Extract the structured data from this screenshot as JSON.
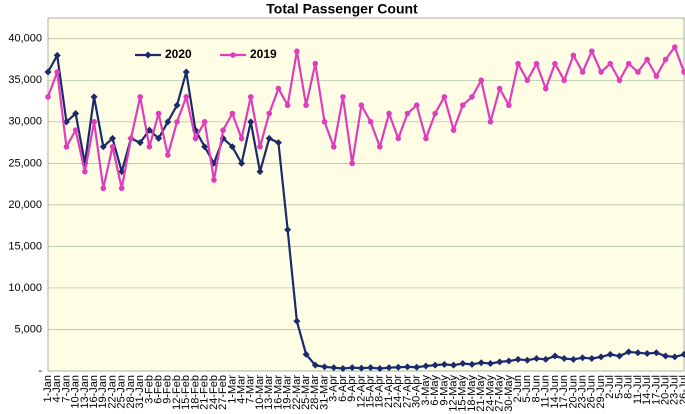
{
  "chart_data": {
    "type": "line",
    "title": "Total Passenger Count",
    "categories": [
      "1-Jan",
      "4-Jan",
      "7-Jan",
      "10-Jan",
      "13-Jan",
      "16-Jan",
      "19-Jan",
      "22-Jan",
      "25-Jan",
      "28-Jan",
      "31-Jan",
      "3-Feb",
      "6-Feb",
      "9-Feb",
      "12-Feb",
      "15-Feb",
      "18-Feb",
      "21-Feb",
      "24-Feb",
      "27-Feb",
      "1-Mar",
      "4-Mar",
      "7-Mar",
      "10-Mar",
      "13-Mar",
      "16-Mar",
      "19-Mar",
      "22-Mar",
      "25-Mar",
      "28-Mar",
      "31-Mar",
      "3-Apr",
      "6-Apr",
      "9-Apr",
      "12-Apr",
      "15-Apr",
      "18-Apr",
      "21-Apr",
      "24-Apr",
      "27-Apr",
      "30-Apr",
      "3-May",
      "6-May",
      "9-May",
      "12-May",
      "15-May",
      "18-May",
      "21-May",
      "24-May",
      "27-May",
      "30-May",
      "2-Jun",
      "5-Jun",
      "8-Jun",
      "11-Jun",
      "14-Jun",
      "17-Jun",
      "20-Jun",
      "23-Jun",
      "26-Jun",
      "29-Jun",
      "2-Jul",
      "5-Jul",
      "8-Jul",
      "11-Jul",
      "14-Jul",
      "17-Jul",
      "20-Jul",
      "23-Jul",
      "26-Jul"
    ],
    "series": [
      {
        "name": "2020",
        "color": "#1a2a6c",
        "marker": "diamond",
        "values": [
          36000,
          38000,
          30000,
          31000,
          25000,
          33000,
          27000,
          28000,
          24000,
          28000,
          27500,
          29000,
          28000,
          30000,
          32000,
          36000,
          29000,
          27000,
          25000,
          28000,
          27000,
          25000,
          30000,
          24000,
          28000,
          27500,
          17000,
          6000,
          2000,
          700,
          500,
          400,
          300,
          400,
          350,
          400,
          300,
          400,
          450,
          500,
          450,
          600,
          700,
          800,
          700,
          900,
          800,
          1000,
          900,
          1100,
          1200,
          1400,
          1300,
          1500,
          1400,
          1800,
          1500,
          1400,
          1600,
          1500,
          1700,
          2000,
          1800,
          2300,
          2200,
          2100,
          2200,
          1800,
          1700,
          2000
        ]
      },
      {
        "name": "2019",
        "color": "#e03cbe",
        "marker": "circle",
        "values": [
          33000,
          36000,
          27000,
          29000,
          24000,
          30000,
          22000,
          27000,
          22000,
          28000,
          33000,
          27000,
          31000,
          26000,
          30000,
          33000,
          28000,
          30000,
          23000,
          29000,
          31000,
          28000,
          33000,
          27000,
          31000,
          34000,
          32000,
          38500,
          32000,
          37000,
          30000,
          27000,
          33000,
          25000,
          32000,
          30000,
          27000,
          31000,
          28000,
          31000,
          32000,
          28000,
          31000,
          33000,
          29000,
          32000,
          33000,
          35000,
          30000,
          34000,
          32000,
          37000,
          35000,
          37000,
          34000,
          37000,
          35000,
          38000,
          36000,
          38500,
          36000,
          37000,
          35000,
          37000,
          36000,
          37500,
          35500,
          37500,
          39000,
          36000
        ]
      }
    ],
    "ylim": [
      0,
      42500
    ],
    "yticks": [
      {
        "value": 0,
        "label": "-"
      },
      {
        "value": 5000,
        "label": "5,000"
      },
      {
        "value": 10000,
        "label": "10,000"
      },
      {
        "value": 15000,
        "label": "15,000"
      },
      {
        "value": 20000,
        "label": "20,000"
      },
      {
        "value": 25000,
        "label": "25,000"
      },
      {
        "value": 30000,
        "label": "30,000"
      },
      {
        "value": 35000,
        "label": "35,000"
      },
      {
        "value": 40000,
        "label": "40,000"
      }
    ],
    "grid": true,
    "legend": "top-left",
    "background": "#fffde3"
  }
}
